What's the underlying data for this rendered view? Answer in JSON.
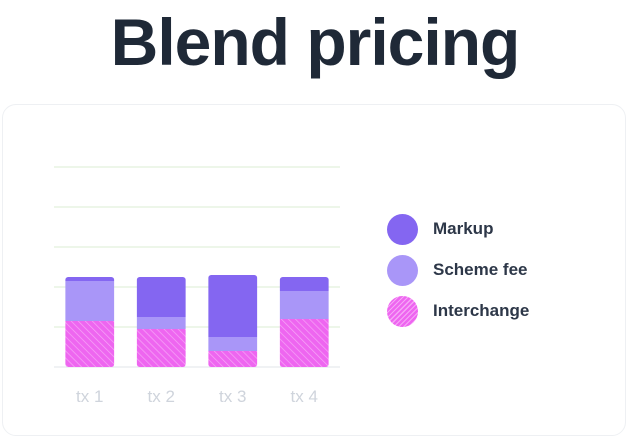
{
  "title": "Blend pricing",
  "chart_data": {
    "type": "bar",
    "stacked": true,
    "categories": [
      "tx 1",
      "tx 2",
      "tx 3",
      "tx 4"
    ],
    "series": [
      {
        "name": "Interchange",
        "values": [
          1.15,
          0.95,
          0.4,
          1.2
        ],
        "color": "#ee66f0",
        "pattern": "hatch"
      },
      {
        "name": "Scheme fee",
        "values": [
          1.0,
          0.3,
          0.35,
          0.7
        ],
        "color": "#a996f8"
      },
      {
        "name": "Markup",
        "values": [
          0.1,
          1.0,
          1.55,
          0.35
        ],
        "color": "#8466f1"
      }
    ],
    "ylim": [
      0,
      5
    ],
    "grid": true,
    "legend": "right"
  }
}
